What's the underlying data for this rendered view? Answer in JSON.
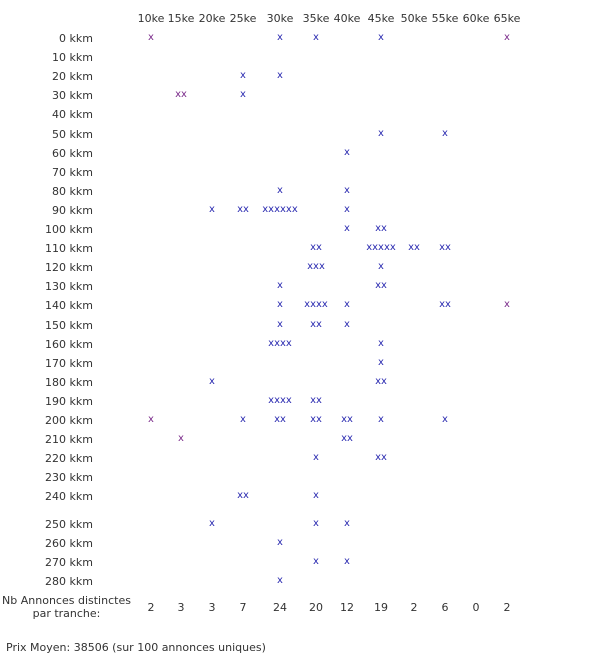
{
  "chart_data": {
    "type": "table",
    "columns": [
      "10ke",
      "15ke",
      "20ke",
      "25ke",
      "30ke",
      "35ke",
      "40ke",
      "45ke",
      "50ke",
      "55ke",
      "60ke",
      "65ke"
    ],
    "rows": [
      "0 kkm",
      "10 kkm",
      "20 kkm",
      "30 kkm",
      "40 kkm",
      "50 kkm",
      "60 kkm",
      "70 kkm",
      "80 kkm",
      "90 kkm",
      "100 kkm",
      "110 kkm",
      "120 kkm",
      "130 kkm",
      "140 kkm",
      "150 kkm",
      "160 kkm",
      "170 kkm",
      "180 kkm",
      "190 kkm",
      "200 kkm",
      "210 kkm",
      "220 kkm",
      "230 kkm",
      "240 kkm",
      "250 kkm",
      "260 kkm",
      "270 kkm",
      "280 kkm"
    ],
    "marks": [
      [
        "x",
        "",
        "",
        "",
        "x",
        "x",
        "",
        "x",
        "",
        "",
        "",
        "x"
      ],
      [
        "",
        "",
        "",
        "",
        "",
        "",
        "",
        "",
        "",
        "",
        "",
        ""
      ],
      [
        "",
        "",
        "",
        "x",
        "x",
        "",
        "",
        "",
        "",
        "",
        "",
        ""
      ],
      [
        "",
        "xx",
        "",
        "x",
        "",
        "",
        "",
        "",
        "",
        "",
        "",
        ""
      ],
      [
        "",
        "",
        "",
        "",
        "",
        "",
        "",
        "",
        "",
        "",
        "",
        ""
      ],
      [
        "",
        "",
        "",
        "",
        "",
        "",
        "",
        "x",
        "",
        "x",
        "",
        ""
      ],
      [
        "",
        "",
        "",
        "",
        "",
        "",
        "x",
        "",
        "",
        "",
        "",
        ""
      ],
      [
        "",
        "",
        "",
        "",
        "",
        "",
        "",
        "",
        "",
        "",
        "",
        ""
      ],
      [
        "",
        "",
        "",
        "",
        "x",
        "",
        "x",
        "",
        "",
        "",
        "",
        ""
      ],
      [
        "",
        "",
        "x",
        "xx",
        "xxxxxx",
        "",
        "x",
        "",
        "",
        "",
        "",
        ""
      ],
      [
        "",
        "",
        "",
        "",
        "",
        "",
        "x",
        "xx",
        "",
        "",
        "",
        ""
      ],
      [
        "",
        "",
        "",
        "",
        "",
        "xx",
        "",
        "xxxxx",
        "xx",
        "xx",
        "",
        ""
      ],
      [
        "",
        "",
        "",
        "",
        "",
        "xxx",
        "",
        "x",
        "",
        "",
        "",
        ""
      ],
      [
        "",
        "",
        "",
        "",
        "x",
        "",
        "",
        "xx",
        "",
        "",
        "",
        ""
      ],
      [
        "",
        "",
        "",
        "",
        "x",
        "xxxx",
        "x",
        "",
        "",
        "xx",
        "",
        "x"
      ],
      [
        "",
        "",
        "",
        "",
        "x",
        "xx",
        "x",
        "",
        "",
        "",
        "",
        ""
      ],
      [
        "",
        "",
        "",
        "",
        "xxxx",
        "",
        "",
        "x",
        "",
        "",
        "",
        ""
      ],
      [
        "",
        "",
        "",
        "",
        "",
        "",
        "",
        "x",
        "",
        "",
        "",
        ""
      ],
      [
        "",
        "",
        "x",
        "",
        "",
        "",
        "",
        "xx",
        "",
        "",
        "",
        ""
      ],
      [
        "",
        "",
        "",
        "",
        "xxxx",
        "xx",
        "",
        "",
        "",
        "",
        "",
        ""
      ],
      [
        "x",
        "",
        "",
        "x",
        "xx",
        "xx",
        "xx",
        "x",
        "",
        "x",
        "",
        ""
      ],
      [
        "",
        "x",
        "",
        "",
        "",
        "",
        "xx",
        "",
        "",
        "",
        "",
        ""
      ],
      [
        "",
        "",
        "",
        "",
        "",
        "x",
        "",
        "xx",
        "",
        "",
        "",
        ""
      ],
      [
        "",
        "",
        "",
        "",
        "",
        "",
        "",
        "",
        "",
        "",
        "",
        ""
      ],
      [
        "",
        "",
        "",
        "xx",
        "",
        "x",
        "",
        "",
        "",
        "",
        "",
        ""
      ],
      [
        "",
        "",
        "x",
        "",
        "",
        "x",
        "x",
        "",
        "",
        "",
        "",
        ""
      ],
      [
        "",
        "",
        "",
        "",
        "x",
        "",
        "",
        "",
        "",
        "",
        "",
        ""
      ],
      [
        "",
        "",
        "",
        "",
        "",
        "x",
        "x",
        "",
        "",
        "",
        "",
        ""
      ],
      [
        "",
        "",
        "",
        "",
        "x",
        "",
        "",
        "",
        "",
        "",
        "",
        ""
      ]
    ],
    "counts": [
      "2",
      "3",
      "3",
      "7",
      "24",
      "20",
      "12",
      "19",
      "2",
      "6",
      "0",
      "2"
    ],
    "counts_label": "Nb Annonces distinctes par tranche:",
    "summary": "Prix Moyen: 38506 (sur 100 annonces uniques)",
    "colors": {
      "mark": "#2a2ab0",
      "mark_edge": "#7a2a8a",
      "text": "#333333"
    }
  }
}
